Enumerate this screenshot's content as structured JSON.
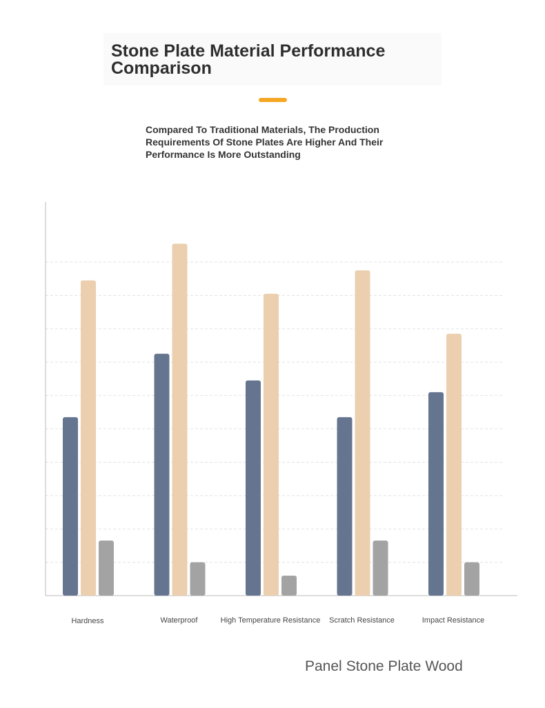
{
  "header": {
    "title": "Stone Plate Material Performance Comparison",
    "subtitle": "Compared To Traditional Materials, The Production Requirements Of Stone Plates Are Higher And Their Performance Is More Outstanding",
    "accent_color": "#f5a623"
  },
  "chart_data": {
    "type": "bar",
    "categories": [
      "Hardness",
      "Waterproof",
      "High Temperature Resistance",
      "Scratch Resistance",
      "Impact Resistance"
    ],
    "series": [
      {
        "name": "Panel",
        "color": "#66758f",
        "values": [
          53.5,
          72.5,
          64.5,
          53.5,
          61
        ]
      },
      {
        "name": "Stone Plate",
        "color": "#ebcfae",
        "values": [
          94.5,
          105.5,
          90.5,
          97.5,
          78.5
        ]
      },
      {
        "name": "Wood",
        "color": "#a3a3a3",
        "values": [
          16.5,
          10,
          6,
          16.5,
          10
        ]
      }
    ],
    "ylim": [
      0,
      118
    ],
    "grid": true,
    "legend_position": "bottom-right"
  }
}
